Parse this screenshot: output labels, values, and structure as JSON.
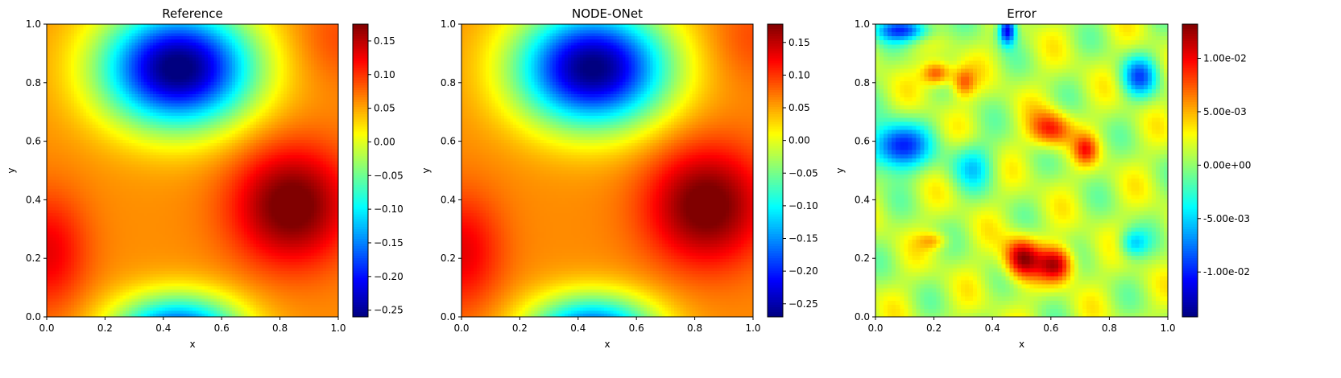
{
  "chart_data": [
    {
      "type": "heatmap",
      "title": "Reference",
      "xlabel": "x",
      "ylabel": "y",
      "xlim": [
        0,
        1
      ],
      "ylim": [
        0,
        1
      ],
      "xticks": [
        "0.0",
        "0.2",
        "0.4",
        "0.6",
        "0.8",
        "1.0"
      ],
      "yticks": [
        "0.0",
        "0.2",
        "0.4",
        "0.6",
        "0.8",
        "1.0"
      ],
      "colormap": "jet",
      "colorbar": {
        "min": -0.26,
        "max": 0.175,
        "ticks": [
          {
            "value": 0.15,
            "label": "0.15"
          },
          {
            "value": 0.1,
            "label": "0.10"
          },
          {
            "value": 0.05,
            "label": "0.05"
          },
          {
            "value": 0.0,
            "label": "0.00"
          },
          {
            "value": -0.05,
            "label": "−0.05"
          },
          {
            "value": -0.1,
            "label": "−0.10"
          },
          {
            "value": -0.15,
            "label": "−0.15"
          },
          {
            "value": -0.2,
            "label": "−0.20"
          },
          {
            "value": -0.25,
            "label": "−0.25"
          }
        ]
      },
      "field_features": [
        {
          "type": "minimum",
          "x": 0.45,
          "y": 0.85,
          "value": -0.26
        },
        {
          "type": "maximum",
          "x": 0.82,
          "y": 0.38,
          "value": 0.175
        },
        {
          "type": "maximum",
          "x": 0.0,
          "y": 0.22,
          "value": 0.12
        },
        {
          "type": "minimum",
          "x": 0.45,
          "y": 0.0,
          "value": -0.2
        }
      ]
    },
    {
      "type": "heatmap",
      "title": "NODE-ONet",
      "xlabel": "x",
      "ylabel": "y",
      "xlim": [
        0,
        1
      ],
      "ylim": [
        0,
        1
      ],
      "xticks": [
        "0.0",
        "0.2",
        "0.4",
        "0.6",
        "0.8",
        "1.0"
      ],
      "yticks": [
        "0.0",
        "0.2",
        "0.4",
        "0.6",
        "0.8",
        "1.0"
      ],
      "colormap": "jet",
      "colorbar": {
        "min": -0.27,
        "max": 0.178,
        "ticks": [
          {
            "value": 0.15,
            "label": "0.15"
          },
          {
            "value": 0.1,
            "label": "0.10"
          },
          {
            "value": 0.05,
            "label": "0.05"
          },
          {
            "value": 0.0,
            "label": "0.00"
          },
          {
            "value": -0.05,
            "label": "−0.05"
          },
          {
            "value": -0.1,
            "label": "−0.10"
          },
          {
            "value": -0.15,
            "label": "−0.15"
          },
          {
            "value": -0.2,
            "label": "−0.20"
          },
          {
            "value": -0.25,
            "label": "−0.25"
          }
        ]
      },
      "field_features": [
        {
          "type": "minimum",
          "x": 0.45,
          "y": 0.85,
          "value": -0.27
        },
        {
          "type": "maximum",
          "x": 0.82,
          "y": 0.38,
          "value": 0.178
        },
        {
          "type": "maximum",
          "x": 0.0,
          "y": 0.22,
          "value": 0.12
        },
        {
          "type": "minimum",
          "x": 0.45,
          "y": 0.0,
          "value": -0.2
        }
      ]
    },
    {
      "type": "heatmap",
      "title": "Error",
      "xlabel": "x",
      "ylabel": "y",
      "xlim": [
        0,
        1
      ],
      "ylim": [
        0,
        1
      ],
      "xticks": [
        "0.0",
        "0.2",
        "0.4",
        "0.6",
        "0.8",
        "1.0"
      ],
      "yticks": [
        "0.0",
        "0.2",
        "0.4",
        "0.6",
        "0.8",
        "1.0"
      ],
      "colormap": "jet",
      "colorbar": {
        "min": -0.0142,
        "max": 0.0132,
        "ticks": [
          {
            "value": 0.01,
            "label": "1.00e-02"
          },
          {
            "value": 0.005,
            "label": "5.00e-03"
          },
          {
            "value": 0.0,
            "label": "0.00e+00"
          },
          {
            "value": -0.005,
            "label": "-5.00e-03"
          },
          {
            "value": -0.01,
            "label": "-1.00e-02"
          }
        ]
      },
      "field_features": [
        {
          "type": "maximum",
          "x": 0.5,
          "y": 0.2,
          "value": 0.012
        },
        {
          "type": "maximum",
          "x": 0.6,
          "y": 0.18,
          "value": 0.011
        },
        {
          "type": "maximum",
          "x": 0.2,
          "y": 0.83,
          "value": 0.009
        },
        {
          "type": "maximum",
          "x": 0.6,
          "y": 0.63,
          "value": 0.009
        },
        {
          "type": "minimum",
          "x": 0.08,
          "y": 0.58,
          "value": -0.012
        },
        {
          "type": "minimum",
          "x": 0.45,
          "y": 0.98,
          "value": -0.013
        },
        {
          "type": "minimum",
          "x": 0.9,
          "y": 0.82,
          "value": -0.009
        }
      ]
    }
  ]
}
